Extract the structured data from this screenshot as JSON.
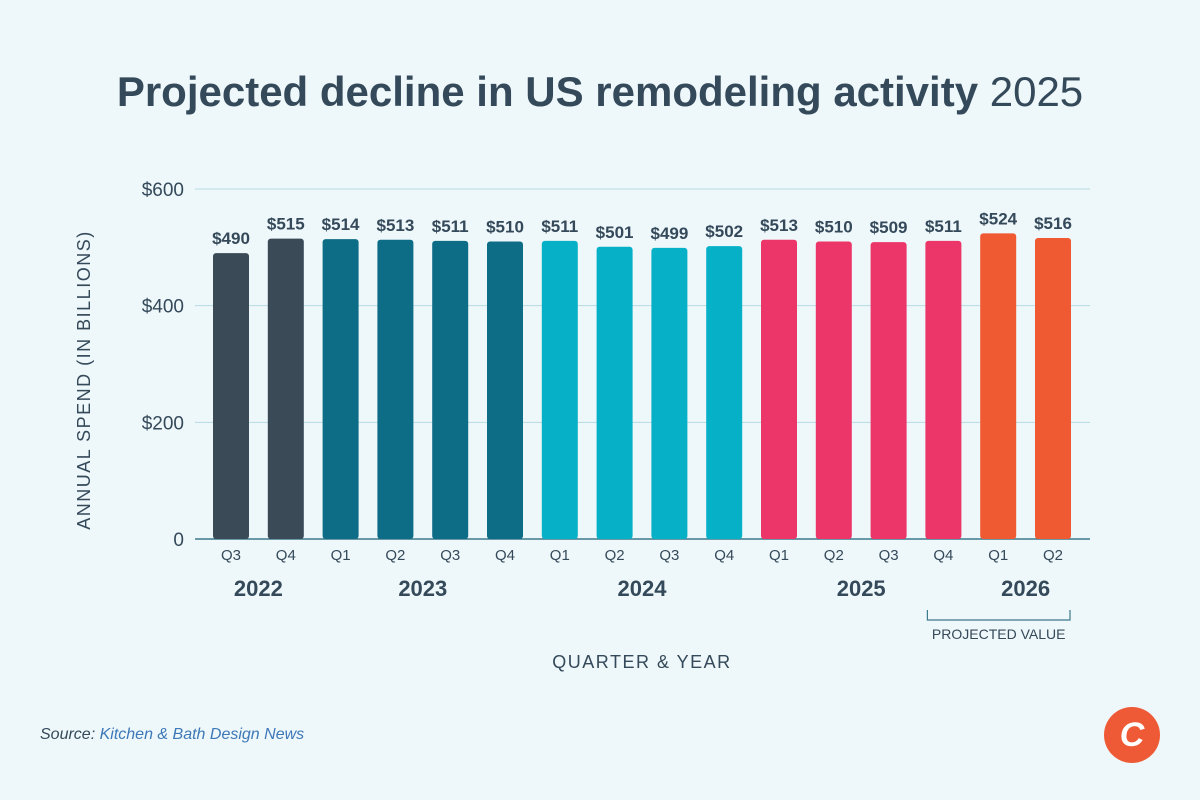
{
  "title": {
    "main": "Projected decline in US remodeling activity",
    "year": "2025"
  },
  "chart_data": {
    "type": "bar",
    "xlabel": "QUARTER & YEAR",
    "ylabel": "ANNUAL SPEND (IN BILLIONS)",
    "ylim": [
      0,
      600
    ],
    "yticks": [
      {
        "value": 0,
        "label": "0"
      },
      {
        "value": 200,
        "label": "$200"
      },
      {
        "value": 400,
        "label": "$400"
      },
      {
        "value": 600,
        "label": "$600"
      }
    ],
    "grid": true,
    "categories": [
      "Q3",
      "Q4",
      "Q1",
      "Q2",
      "Q3",
      "Q4",
      "Q1",
      "Q2",
      "Q3",
      "Q4",
      "Q1",
      "Q2",
      "Q3",
      "Q4",
      "Q1",
      "Q2"
    ],
    "values": [
      490,
      515,
      514,
      513,
      511,
      510,
      511,
      501,
      499,
      502,
      513,
      510,
      509,
      511,
      524,
      516
    ],
    "value_labels": [
      "$490",
      "$515",
      "$514",
      "$513",
      "$511",
      "$510",
      "$511",
      "$501",
      "$499",
      "$502",
      "$513",
      "$510",
      "$509",
      "$511",
      "$524",
      "$516"
    ],
    "bar_colors": [
      "#3a4a57",
      "#3a4a57",
      "#0e6d86",
      "#0e6d86",
      "#0e6d86",
      "#0e6d86",
      "#06b1c8",
      "#06b1c8",
      "#06b1c8",
      "#06b1c8",
      "#ec3568",
      "#ec3568",
      "#ec3568",
      "#ec3568",
      "#ef5a33",
      "#ef5a33"
    ],
    "year_groups": [
      {
        "label": "2022",
        "from": 0,
        "to": 1
      },
      {
        "label": "2023",
        "from": 2,
        "to": 5
      },
      {
        "label": "2024",
        "from": 6,
        "to": 9
      },
      {
        "label": "2025",
        "from": 10,
        "to": 13
      },
      {
        "label": "2026",
        "from": 14,
        "to": 15
      }
    ],
    "annotation": {
      "label": "PROJECTED VALUE",
      "from": 13,
      "to": 15
    }
  },
  "source": {
    "prefix": "Source:",
    "name": "Kitchen & Bath Design News"
  },
  "logo": {
    "letter": "C",
    "color": "#ee5a35"
  },
  "colors": {
    "background": "#eef7f9",
    "text": "#34495a",
    "grid": "#b5dbe4",
    "axis": "#3d7a8c"
  }
}
